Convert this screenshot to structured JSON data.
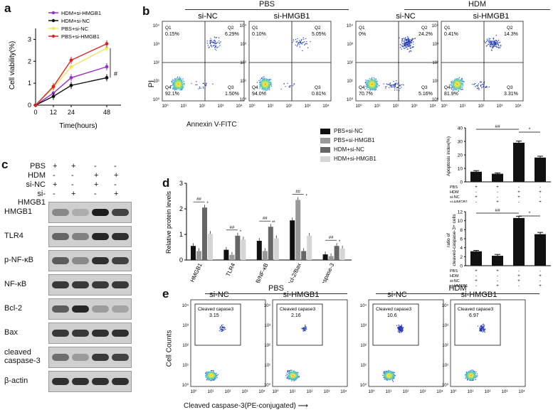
{
  "panels": {
    "a": "a",
    "b": "b",
    "c": "c",
    "d": "d",
    "e": "e"
  },
  "panel_a": {
    "chart_data": {
      "type": "line",
      "title": "",
      "xlabel": "Time(hours)",
      "ylabel": "Cell viability(%)",
      "x": [
        0,
        12,
        24,
        48
      ],
      "xticks": [
        "0",
        "12",
        "24",
        "48"
      ],
      "yticks": [
        "0",
        "1",
        "2",
        "3"
      ],
      "ylim": [
        0,
        3.5
      ],
      "significance": "#",
      "series": [
        {
          "name": "HDM+si-HMGB1",
          "color": "#9b30c8",
          "values": [
            0,
            0.55,
            1.25,
            1.75
          ]
        },
        {
          "name": "HDM+si-NC",
          "color": "#111111",
          "values": [
            0,
            0.4,
            0.9,
            1.25
          ]
        },
        {
          "name": "PBS+si-NC",
          "color": "#f2e55a",
          "values": [
            0,
            0.8,
            1.75,
            2.6
          ]
        },
        {
          "name": "PBS+si-HMGB1",
          "color": "#e02020",
          "values": [
            0,
            0.85,
            2.05,
            2.8
          ]
        }
      ]
    }
  },
  "panel_b": {
    "group_pbs": "PBS",
    "group_hdm": "HDM",
    "y_axis": "PI",
    "x_axis": "Annexin V-FITC",
    "plots": [
      {
        "header": "si-NC",
        "q1": "Q1",
        "q1v": "0.15%",
        "q2": "Q2",
        "q2v": "6.29%",
        "q3": "Q3",
        "q3v": "1.50%",
        "q4": "Q4",
        "q4v": "92.1%"
      },
      {
        "header": "si-HMGB1",
        "q1": "Q1",
        "q1v": "0.10%",
        "q2": "Q2",
        "q2v": "5.05%",
        "q3": "Q3",
        "q3v": "0.81%",
        "q4": "Q4",
        "q4v": "94.0%"
      },
      {
        "header": "si-NC",
        "q1": "Q1",
        "q1v": "0%",
        "q2": "Q2",
        "q2v": "24.2%",
        "q3": "Q3",
        "q3v": "5.16%",
        "q4": "Q4",
        "q4v": "70.7%"
      },
      {
        "header": "si-HMGB1",
        "q1": "Q1",
        "q1v": "0.41%",
        "q2": "Q2",
        "q2v": "14.3%",
        "q3": "Q3",
        "q3v": "3.31%",
        "q4": "Q4",
        "q4v": "81.9%"
      }
    ],
    "tick_labels": [
      "10⁰",
      "10¹",
      "10²",
      "10³",
      "10⁴"
    ],
    "apoptosis_chart": {
      "chart_data": {
        "type": "bar",
        "ylabel": "Apoptosis index(%)",
        "yticks": [
          "0",
          "10",
          "20",
          "30",
          "40"
        ],
        "ylim": [
          0,
          40
        ],
        "values": [
          7.5,
          6,
          29,
          18
        ],
        "errors": [
          0.8,
          0.6,
          1.2,
          1.0
        ],
        "colors": [
          "#111111",
          "#111111",
          "#111111",
          "#111111"
        ],
        "sig": [
          "##",
          "*"
        ]
      }
    },
    "condition_rows": [
      {
        "label": "PBS",
        "values": [
          "+",
          "+",
          "-",
          "-"
        ]
      },
      {
        "label": "HDM",
        "values": [
          "-",
          "-",
          "+",
          "+"
        ]
      },
      {
        "label": "si-NC",
        "values": [
          "+",
          "-",
          "+",
          "-"
        ]
      },
      {
        "label": "si-HMGB1",
        "values": [
          "-",
          "+",
          "-",
          "+"
        ]
      }
    ]
  },
  "panel_c": {
    "header_rows": [
      {
        "label": "PBS",
        "values": [
          "+",
          "+",
          "-",
          "-"
        ]
      },
      {
        "label": "HDM",
        "values": [
          "-",
          "-",
          "+",
          "+"
        ]
      },
      {
        "label": "si-NC",
        "values": [
          "+",
          "-",
          "+",
          "-"
        ]
      },
      {
        "label": "si-HMGB1",
        "values": [
          "-",
          "+",
          "-",
          "+"
        ]
      }
    ],
    "blots": [
      {
        "label": "HMGB1",
        "intensity": [
          0.35,
          0.15,
          0.95,
          0.75
        ]
      },
      {
        "label": "TLR4",
        "intensity": [
          0.55,
          0.4,
          0.9,
          0.85
        ]
      },
      {
        "label": "p-NF-κB",
        "intensity": [
          0.6,
          0.35,
          0.85,
          0.75
        ]
      },
      {
        "label": "NF-κB",
        "intensity": [
          0.8,
          0.8,
          0.8,
          0.8
        ]
      },
      {
        "label": "Bcl-2",
        "intensity": [
          0.6,
          0.9,
          0.25,
          0.2
        ]
      },
      {
        "label": "Bax",
        "intensity": [
          0.8,
          0.8,
          0.85,
          0.85
        ]
      },
      {
        "label": "cleaved caspase-3",
        "label1": "cleaved",
        "label2": "caspase-3",
        "intensity": [
          0.5,
          0.25,
          0.8,
          0.75
        ]
      },
      {
        "label": "β-actin",
        "intensity": [
          0.85,
          0.85,
          0.85,
          0.85
        ]
      }
    ]
  },
  "panel_d": {
    "chart_data": {
      "type": "bar",
      "ylabel": "Relative protein levels",
      "yticks": [
        "0",
        "1",
        "2",
        "3"
      ],
      "ylim": [
        0,
        3
      ],
      "categories": [
        "HMGB1",
        "TLR4",
        "p-NF-κB/NF-κB",
        "Bcl-2/Bax",
        "cleaved-caspase-3"
      ],
      "series": [
        {
          "name": "PBS+si-NC",
          "color": "#111111",
          "values": [
            0.55,
            0.4,
            0.75,
            1.55,
            0.22
          ]
        },
        {
          "name": "PBS+si-HMGB1",
          "color": "#999999",
          "values": [
            0.35,
            0.2,
            0.35,
            2.35,
            0.15
          ]
        },
        {
          "name": "HDM+si-NC",
          "color": "#666666",
          "values": [
            2.05,
            0.95,
            1.3,
            0.35,
            0.55
          ]
        },
        {
          "name": "HDM+si-HMGB1",
          "color": "#d5d5d5",
          "values": [
            1.02,
            0.8,
            0.85,
            0.95,
            0.45
          ]
        }
      ],
      "sig": [
        "##",
        "*",
        "##",
        "*",
        "##",
        "**",
        "##",
        "*",
        "##",
        "*"
      ]
    }
  },
  "panel_e": {
    "group_pbs": "PBS",
    "group_hdm": "HDM",
    "y_axis": "Cell Counts",
    "x_axis": "Cleaved caspase-3(PE-conjugated)",
    "gate_label": "Cleaved capase3",
    "plots": [
      {
        "header": "si-NC",
        "value": "3.15"
      },
      {
        "header": "si-HMGB1",
        "value": "2.16"
      },
      {
        "header": "si-NC",
        "value": "10.6"
      },
      {
        "header": "si-HMGB1",
        "value": "6.97"
      }
    ],
    "tick_labels": [
      "10⁰",
      "10¹",
      "10²",
      "10³",
      "10⁴"
    ],
    "caspase_chart": {
      "chart_data": {
        "type": "bar",
        "ylabel": "ratio of cleaved-caspase-3+ cells",
        "yticks": [
          "0",
          "2",
          "4",
          "6",
          "8",
          "10",
          "12"
        ],
        "ylim": [
          0,
          12
        ],
        "values": [
          3.2,
          2.2,
          10.6,
          7.0
        ],
        "errors": [
          0.2,
          0.3,
          0.4,
          0.4
        ],
        "sig": [
          "##",
          "*"
        ]
      }
    }
  }
}
